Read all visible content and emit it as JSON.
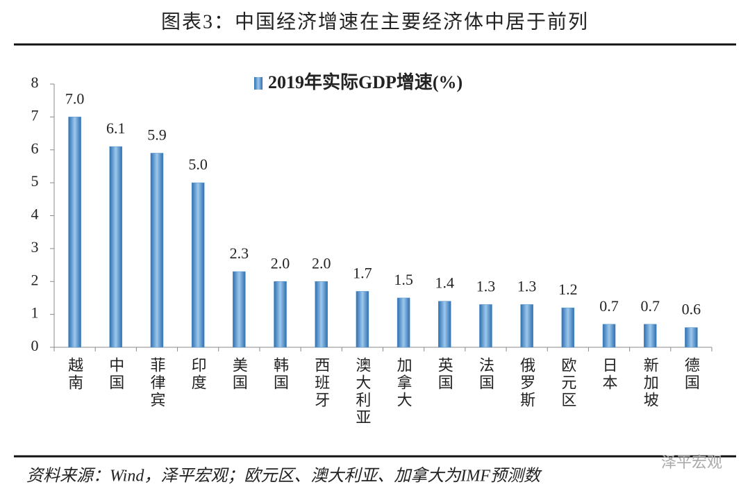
{
  "chart_data": {
    "type": "bar",
    "title": "图表3：中国经济增速在主要经济体中居于前列",
    "categories": [
      "越南",
      "中国",
      "菲律宾",
      "印度",
      "美国",
      "韩国",
      "西班牙",
      "澳大利亚",
      "加拿大",
      "英国",
      "法国",
      "俄罗斯",
      "欧元区",
      "日本",
      "新加坡",
      "德国"
    ],
    "series": [
      {
        "name": "2019年实际GDP增速(%)",
        "color": "#4f8fcc",
        "values": [
          7.0,
          6.1,
          5.9,
          5.0,
          2.3,
          2.0,
          2.0,
          1.7,
          1.5,
          1.4,
          1.3,
          1.3,
          1.2,
          0.7,
          0.7,
          0.6
        ],
        "value_labels": [
          "7.0",
          "6.1",
          "5.9",
          "5.0",
          "2.3",
          "2.0",
          "2.0",
          "1.7",
          "1.5",
          "1.4",
          "1.3",
          "1.3",
          "1.2",
          "0.7",
          "0.7",
          "0.6"
        ]
      }
    ],
    "ylim": [
      0,
      8
    ],
    "yticks": [
      0,
      1,
      2,
      3,
      4,
      5,
      6,
      7,
      8
    ],
    "grid": false,
    "source": "资料来源：Wind，泽平宏观；欧元区、澳大利亚、加拿大为IMF预测数",
    "watermark": "泽平宏观"
  }
}
